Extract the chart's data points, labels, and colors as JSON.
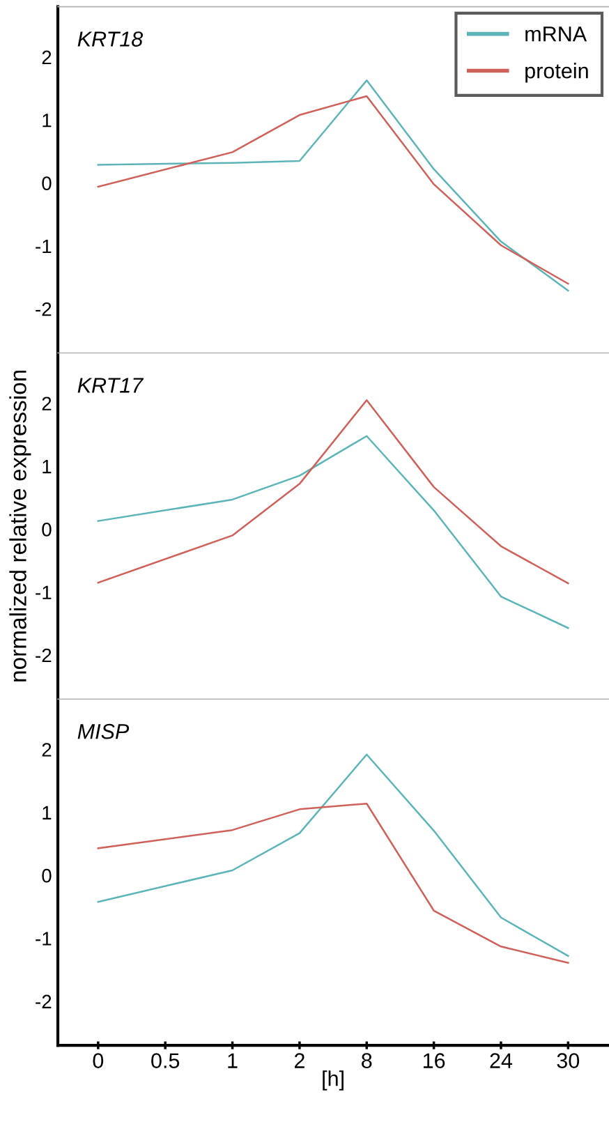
{
  "chart_data": [
    {
      "type": "line",
      "title": "KRT18",
      "categories": [
        "0",
        "0.5",
        "1",
        "2",
        "8",
        "16",
        "24",
        "30"
      ],
      "ylim": [
        -2.7,
        2.8
      ],
      "yticks": [
        -2,
        -1,
        0,
        1,
        2
      ],
      "tick_labels": "y",
      "legend": "top right",
      "grid": false,
      "series": [
        {
          "name": "mRNA",
          "color": "#5bb5b8",
          "values": [
            0.29,
            null,
            0.32,
            0.35,
            1.63,
            0.22,
            -0.93,
            -1.71
          ]
        },
        {
          "name": "protein",
          "color": "#d0605a",
          "values": [
            -0.06,
            null,
            0.49,
            1.08,
            1.38,
            -0.02,
            -0.99,
            -1.6
          ]
        }
      ]
    },
    {
      "type": "line",
      "title": "KRT17",
      "ylabel": "normalized relative expression",
      "categories": [
        "0",
        "0.5",
        "1",
        "2",
        "8",
        "16",
        "24",
        "30"
      ],
      "ylim": [
        -2.7,
        2.8
      ],
      "yticks": [
        -2,
        -1,
        0,
        1,
        2
      ],
      "tick_labels": "y",
      "grid": false,
      "series": [
        {
          "color": "#5bb5b8",
          "values": [
            0.13,
            null,
            0.47,
            0.85,
            1.48,
            0.3,
            -1.07,
            -1.57
          ]
        },
        {
          "color": "#d0605a",
          "values": [
            -0.85,
            null,
            -0.1,
            0.72,
            2.05,
            0.67,
            -0.27,
            -0.86
          ]
        }
      ]
    },
    {
      "type": "line",
      "title": "MISP",
      "xlabel": "[h]",
      "categories": [
        "0",
        "0.5",
        "1",
        "2",
        "8",
        "16",
        "24",
        "30"
      ],
      "ylim": [
        -2.7,
        2.8
      ],
      "yticks": [
        -2,
        -1,
        0,
        1,
        2
      ],
      "grid": false,
      "series": [
        {
          "color": "#5bb5b8",
          "values": [
            -0.42,
            null,
            0.08,
            0.67,
            1.92,
            0.71,
            -0.67,
            -1.28
          ]
        },
        {
          "color": "#d0605a",
          "values": [
            0.43,
            null,
            0.72,
            1.05,
            1.14,
            -0.56,
            -1.13,
            -1.39
          ]
        }
      ]
    }
  ]
}
